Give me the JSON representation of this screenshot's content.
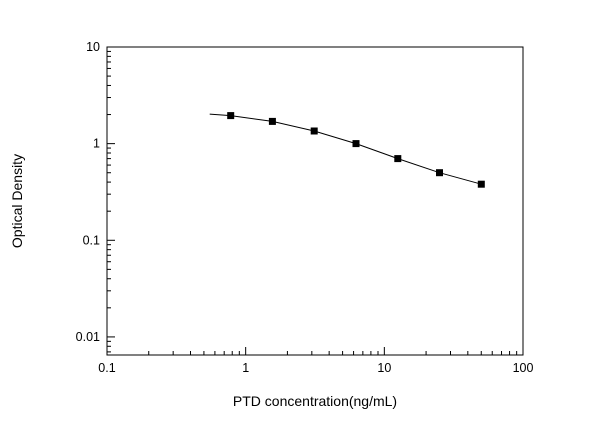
{
  "chart_data": {
    "type": "scatter",
    "title": "",
    "xlabel": "PTD concentration(ng/mL)",
    "ylabel": "Optical Density",
    "x_scale": "log",
    "y_scale": "log",
    "xlim": [
      0.1,
      100
    ],
    "ylim": [
      0.0065,
      10
    ],
    "x": [
      0.78,
      1.56,
      3.12,
      6.25,
      12.5,
      25,
      50
    ],
    "y": [
      1.95,
      1.7,
      1.35,
      1.0,
      0.7,
      0.5,
      0.38
    ],
    "curve_leading_point": [
      0.55,
      2.02
    ],
    "x_ticks": [
      {
        "value": 0.1,
        "label": "0.1"
      },
      {
        "value": 1,
        "label": "1"
      },
      {
        "value": 10,
        "label": "10"
      },
      {
        "value": 100,
        "label": "100"
      }
    ],
    "y_ticks": [
      {
        "value": 10,
        "label": "10"
      },
      {
        "value": 1,
        "label": "1"
      },
      {
        "value": 0.1,
        "label": "0.1"
      },
      {
        "value": 0.01,
        "label": "0.01"
      }
    ],
    "marker": "filled-square",
    "marker_color": "#000000",
    "line_color": "#000000",
    "frame_color": "#000000",
    "grid": false,
    "legend": null
  }
}
